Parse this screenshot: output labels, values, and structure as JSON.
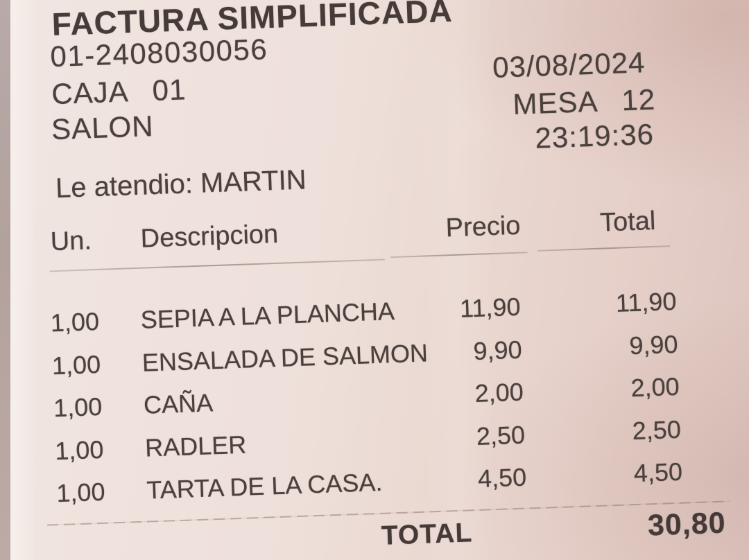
{
  "receipt": {
    "title": "FACTURA SIMPLIFICADA",
    "invoice_number": "01-2408030056",
    "register": {
      "label": "CAJA",
      "value": "01"
    },
    "zone": "SALON",
    "date": "03/08/2024",
    "table": {
      "label": "MESA",
      "value": "12"
    },
    "time": "23:19:36",
    "served_by": "Le atendio: MARTIN",
    "columns": {
      "un": "Un.",
      "desc": "Descripcion",
      "price": "Precio",
      "total": "Total"
    },
    "items": [
      {
        "qty": "1,00",
        "desc": "SEPIA A LA PLANCHA",
        "price": "11,90",
        "total": "11,90"
      },
      {
        "qty": "1,00",
        "desc": "ENSALADA DE SALMON",
        "price": "9,90",
        "total": "9,90"
      },
      {
        "qty": "1,00",
        "desc": "CAÑA",
        "price": "2,00",
        "total": "2,00"
      },
      {
        "qty": "1,00",
        "desc": "RADLER",
        "price": "2,50",
        "total": "2,50"
      },
      {
        "qty": "1,00",
        "desc": "TARTA DE LA CASA.",
        "price": "4,50",
        "total": "4,50"
      }
    ],
    "total_label": "TOTAL",
    "total_value": "30,80",
    "colors": {
      "paper": "#eedfd9",
      "ink": "#4a403d"
    }
  }
}
